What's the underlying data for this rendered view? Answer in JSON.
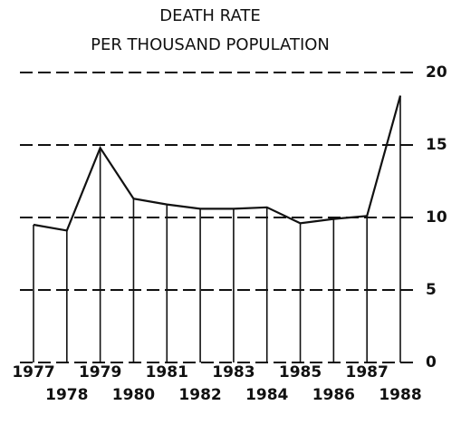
{
  "chart_data": {
    "type": "line",
    "title": "DEATH RATE",
    "subtitle": "PER THOUSAND POPULATION",
    "categories": [
      "1977",
      "1978",
      "1979",
      "1980",
      "1981",
      "1982",
      "1983",
      "1984",
      "1985",
      "1986",
      "1987",
      "1988"
    ],
    "values": [
      9.5,
      9.1,
      14.8,
      11.3,
      10.9,
      10.6,
      10.6,
      10.7,
      9.6,
      9.9,
      10.1,
      18.4
    ],
    "color": "#111111",
    "ylim": [
      0,
      20
    ],
    "yticks": [
      0,
      5,
      10,
      15,
      20
    ],
    "grid": true
  }
}
